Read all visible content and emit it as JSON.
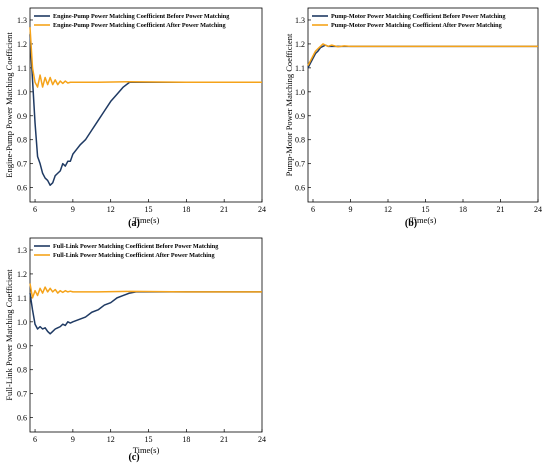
{
  "colors": {
    "before": "#1f3a63",
    "after": "#f5a31a"
  },
  "chart_data": [
    {
      "type": "line",
      "caption": "(a)",
      "xlabel": "Time(s)",
      "ylabel": "Engine-Pump Power Matching Coefficient",
      "xlim": [
        5.6,
        24
      ],
      "ylim": [
        0.54,
        1.35
      ],
      "xticks": [
        6,
        9,
        12,
        15,
        18,
        21,
        24
      ],
      "yticks": [
        0.6,
        0.7,
        0.8,
        0.9,
        1.0,
        1.1,
        1.2,
        1.3
      ],
      "legend_position": "top-left",
      "series": [
        {
          "name": "Engine-Pump Power Matching Coefficient Before Power Matching",
          "x": [
            5.6,
            5.8,
            6.0,
            6.2,
            6.4,
            6.6,
            6.8,
            7.0,
            7.2,
            7.4,
            7.6,
            7.8,
            8.0,
            8.2,
            8.4,
            8.6,
            8.8,
            9.0,
            9.3,
            9.6,
            10.0,
            10.5,
            11.0,
            11.5,
            12.0,
            12.5,
            13.0,
            13.5,
            14,
            18,
            21,
            24
          ],
          "y": [
            1.24,
            1.05,
            0.87,
            0.73,
            0.7,
            0.66,
            0.64,
            0.63,
            0.61,
            0.62,
            0.65,
            0.66,
            0.67,
            0.7,
            0.69,
            0.71,
            0.71,
            0.74,
            0.76,
            0.78,
            0.8,
            0.84,
            0.88,
            0.92,
            0.96,
            0.99,
            1.02,
            1.04,
            1.04,
            1.04,
            1.04,
            1.04
          ]
        },
        {
          "name": "Engine-Pump Power Matching Coefficient After Power Matching",
          "x": [
            5.6,
            5.8,
            6.0,
            6.2,
            6.4,
            6.6,
            6.8,
            7.0,
            7.2,
            7.4,
            7.6,
            7.8,
            8.0,
            8.2,
            8.4,
            8.6,
            8.8,
            9.0,
            9.5,
            10.0,
            11.0,
            13.5,
            18,
            21,
            24
          ],
          "y": [
            1.27,
            1.1,
            1.04,
            1.02,
            1.07,
            1.02,
            1.06,
            1.03,
            1.06,
            1.03,
            1.05,
            1.03,
            1.045,
            1.035,
            1.045,
            1.037,
            1.04,
            1.04,
            1.04,
            1.04,
            1.04,
            1.042,
            1.04,
            1.04,
            1.04
          ]
        }
      ]
    },
    {
      "type": "line",
      "caption": "(b)",
      "xlabel": "Time(s)",
      "ylabel": "Pump-Motor Power Matching Coefficient",
      "xlim": [
        5.6,
        24
      ],
      "ylim": [
        0.54,
        1.35
      ],
      "xticks": [
        6,
        9,
        12,
        15,
        18,
        21,
        24
      ],
      "yticks": [
        0.6,
        0.7,
        0.8,
        0.9,
        1.0,
        1.1,
        1.2,
        1.3
      ],
      "legend_position": "top-left",
      "series": [
        {
          "name": "Pump-Motor Power Matching Coefficient Before Power Matching",
          "x": [
            5.6,
            5.8,
            6.0,
            6.2,
            6.4,
            6.6,
            6.8,
            7.0,
            7.2,
            7.5,
            8.0,
            8.5,
            9.0,
            10,
            12,
            15,
            18,
            21,
            24
          ],
          "y": [
            1.1,
            1.12,
            1.14,
            1.16,
            1.17,
            1.185,
            1.19,
            1.195,
            1.19,
            1.19,
            1.19,
            1.19,
            1.19,
            1.19,
            1.19,
            1.19,
            1.19,
            1.19,
            1.19
          ]
        },
        {
          "name": "Pump-Motor Power Matching Coefficient After Power Matching",
          "x": [
            5.6,
            5.8,
            6.0,
            6.2,
            6.4,
            6.6,
            6.8,
            7.0,
            7.2,
            7.5,
            8.0,
            8.5,
            9.0,
            10,
            12,
            15,
            18,
            21,
            24
          ],
          "y": [
            1.11,
            1.13,
            1.15,
            1.17,
            1.18,
            1.19,
            1.2,
            1.195,
            1.19,
            1.195,
            1.188,
            1.192,
            1.19,
            1.19,
            1.19,
            1.19,
            1.19,
            1.19,
            1.19
          ]
        }
      ]
    },
    {
      "type": "line",
      "caption": "(c)",
      "xlabel": "Time(s)",
      "ylabel": "Full-Link Power Matching Coefficient",
      "xlim": [
        5.6,
        24
      ],
      "ylim": [
        0.54,
        1.35
      ],
      "xticks": [
        6,
        9,
        12,
        15,
        18,
        21,
        24
      ],
      "yticks": [
        0.6,
        0.7,
        0.8,
        0.9,
        1.0,
        1.1,
        1.2,
        1.3
      ],
      "legend_position": "top-left",
      "series": [
        {
          "name": "Full-Link Power Matching Coefficient Before Power Matching",
          "x": [
            5.6,
            5.8,
            6.0,
            6.2,
            6.4,
            6.6,
            6.8,
            7.0,
            7.2,
            7.4,
            7.6,
            7.8,
            8.0,
            8.2,
            8.4,
            8.6,
            8.8,
            9.0,
            9.5,
            10,
            10.5,
            11,
            11.5,
            12,
            12.5,
            13,
            13.5,
            14,
            18,
            21,
            24
          ],
          "y": [
            1.12,
            1.05,
            0.99,
            0.97,
            0.98,
            0.97,
            0.975,
            0.96,
            0.95,
            0.96,
            0.97,
            0.975,
            0.98,
            0.99,
            0.985,
            1.0,
            0.995,
            1.0,
            1.01,
            1.02,
            1.04,
            1.05,
            1.07,
            1.08,
            1.1,
            1.11,
            1.12,
            1.125,
            1.125,
            1.125,
            1.125
          ]
        },
        {
          "name": "Full-Link Power Matching Coefficient After Power Matching",
          "x": [
            5.6,
            5.8,
            6.0,
            6.2,
            6.4,
            6.6,
            6.8,
            7.0,
            7.2,
            7.4,
            7.6,
            7.8,
            8.0,
            8.2,
            8.4,
            8.6,
            8.8,
            9.0,
            9.5,
            10,
            11,
            13.5,
            18,
            21,
            24
          ],
          "y": [
            1.16,
            1.1,
            1.13,
            1.11,
            1.14,
            1.12,
            1.145,
            1.125,
            1.14,
            1.125,
            1.135,
            1.12,
            1.13,
            1.123,
            1.13,
            1.125,
            1.128,
            1.125,
            1.125,
            1.125,
            1.125,
            1.127,
            1.125,
            1.125,
            1.125
          ]
        }
      ]
    }
  ]
}
